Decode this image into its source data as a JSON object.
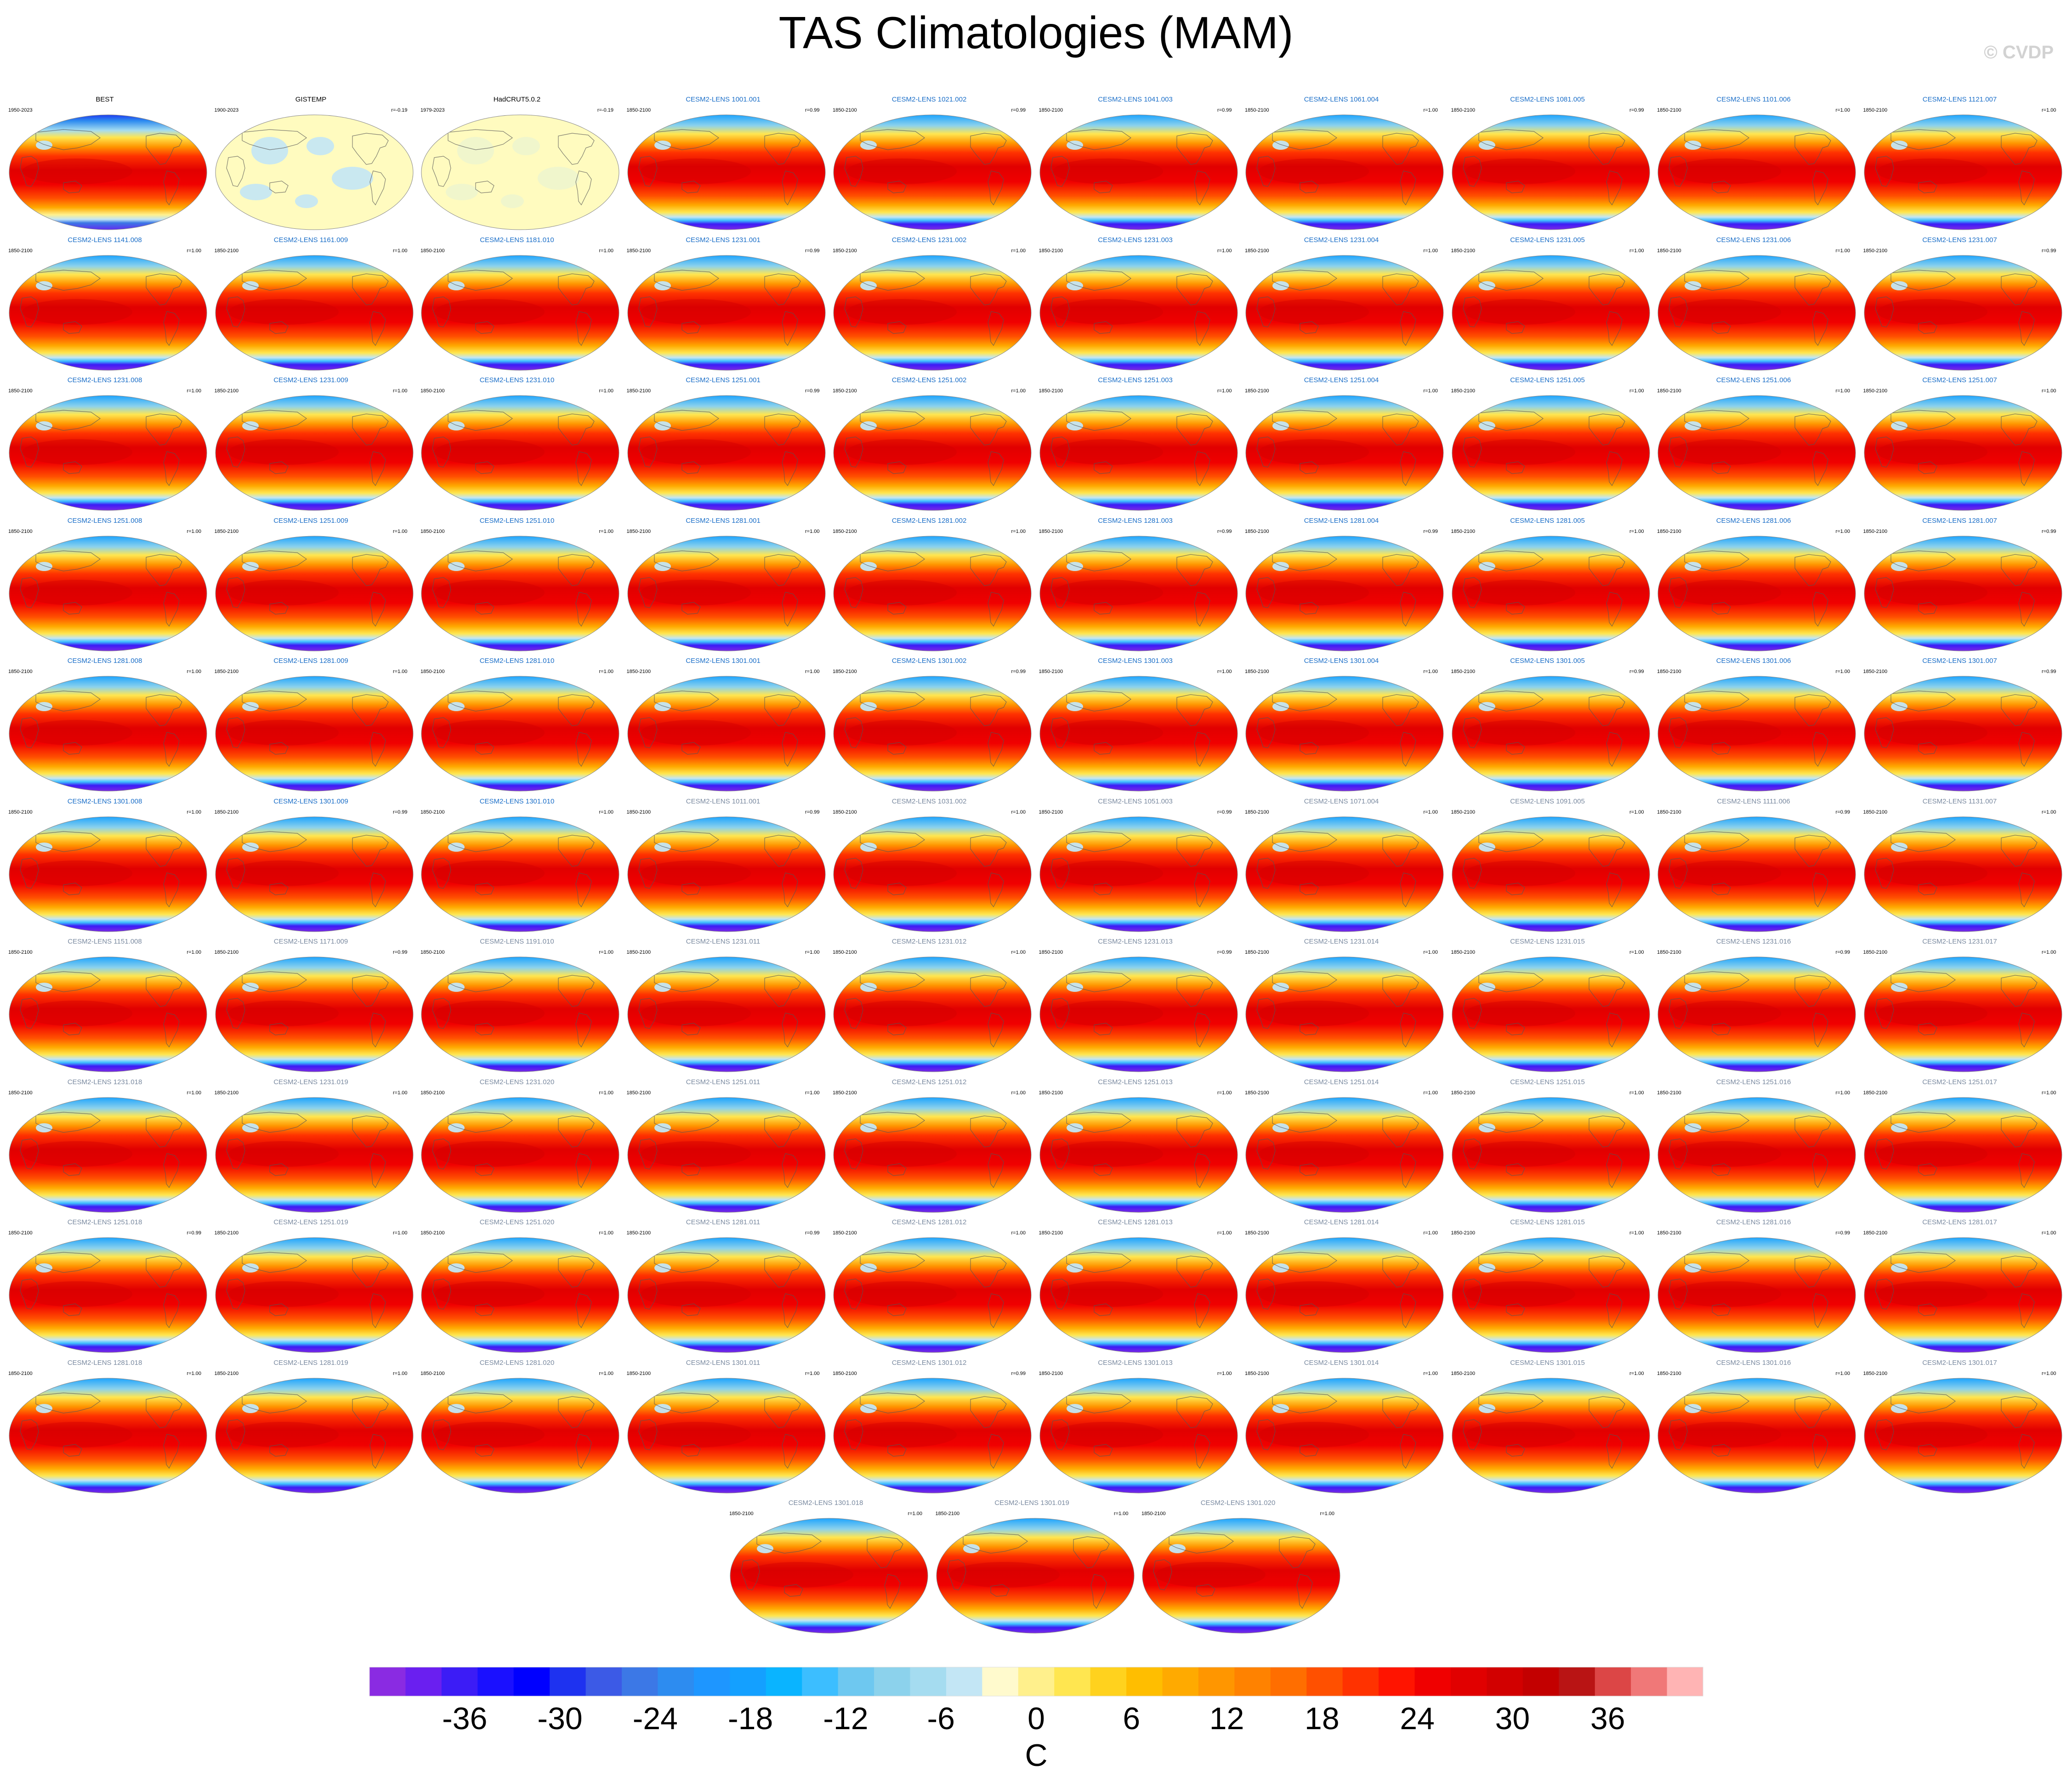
{
  "title": "TAS Climatologies (MAM)",
  "watermark": "© CVDP",
  "chart_data": {
    "type": "map_panels",
    "variable": "TAS",
    "season": "MAM",
    "colorbar": {
      "label": "C",
      "ticks": [
        -36,
        -30,
        -24,
        -18,
        -12,
        -6,
        0,
        6,
        12,
        18,
        24,
        30,
        36
      ],
      "range": [
        -42,
        42
      ],
      "step": 2,
      "colors": [
        "#8a2be2",
        "#6a1ff0",
        "#3c1cf6",
        "#1a10ff",
        "#0000ff",
        "#1e32f0",
        "#3c5ae6",
        "#3c78e6",
        "#2d8cf0",
        "#1e96ff",
        "#14a0ff",
        "#0ab4ff",
        "#3cbeff",
        "#6ec8f0",
        "#8cd2ec",
        "#a5dcf0",
        "#c3e6f5",
        "#fffacd",
        "#fff08c",
        "#ffe650",
        "#ffd21e",
        "#ffbe00",
        "#ffaa00",
        "#ff9600",
        "#ff8200",
        "#ff6e00",
        "#ff5000",
        "#ff3200",
        "#ff1400",
        "#f00000",
        "#e10000",
        "#d20000",
        "#c30000",
        "#b91414",
        "#dc4646",
        "#f07878",
        "#ffb4b4"
      ]
    },
    "panels": [
      {
        "title": "BEST",
        "period": "1950-2023",
        "r": "",
        "kind": "obs",
        "title_color": "#000000"
      },
      {
        "title": "GISTEMP",
        "period": "1900-2023",
        "r": "r=-0.19",
        "kind": "missing",
        "title_color": "#000000"
      },
      {
        "title": "HadCRUT5.0.2",
        "period": "1979-2023",
        "r": "r=-0.19",
        "kind": "missing",
        "title_color": "#000000"
      },
      {
        "title": "CESM2-LENS 1001.001",
        "period": "1850-2100",
        "r": "r=0.99",
        "kind": "model",
        "title_color": "#1a6ec8"
      },
      {
        "title": "CESM2-LENS 1021.002",
        "period": "1850-2100",
        "r": "r=0.99",
        "kind": "model",
        "title_color": "#1a6ec8"
      },
      {
        "title": "CESM2-LENS 1041.003",
        "period": "1850-2100",
        "r": "r=0.99",
        "kind": "model",
        "title_color": "#1a6ec8"
      },
      {
        "title": "CESM2-LENS 1061.004",
        "period": "1850-2100",
        "r": "r=1.00",
        "kind": "model",
        "title_color": "#1a6ec8"
      },
      {
        "title": "CESM2-LENS 1081.005",
        "period": "1850-2100",
        "r": "r=0.99",
        "kind": "model",
        "title_color": "#1a6ec8"
      },
      {
        "title": "CESM2-LENS 1101.006",
        "period": "1850-2100",
        "r": "r=1.00",
        "kind": "model",
        "title_color": "#1a6ec8"
      },
      {
        "title": "CESM2-LENS 1121.007",
        "period": "1850-2100",
        "r": "r=1.00",
        "kind": "model",
        "title_color": "#1a6ec8"
      },
      {
        "title": "CESM2-LENS 1141.008",
        "period": "1850-2100",
        "r": "r=1.00",
        "kind": "model",
        "title_color": "#1a6ec8"
      },
      {
        "title": "CESM2-LENS 1161.009",
        "period": "1850-2100",
        "r": "r=1.00",
        "kind": "model",
        "title_color": "#1a6ec8"
      },
      {
        "title": "CESM2-LENS 1181.010",
        "period": "1850-2100",
        "r": "r=1.00",
        "kind": "model",
        "title_color": "#1a6ec8"
      },
      {
        "title": "CESM2-LENS 1231.001",
        "period": "1850-2100",
        "r": "r=0.99",
        "kind": "model",
        "title_color": "#1a6ec8"
      },
      {
        "title": "CESM2-LENS 1231.002",
        "period": "1850-2100",
        "r": "r=1.00",
        "kind": "model",
        "title_color": "#1a6ec8"
      },
      {
        "title": "CESM2-LENS 1231.003",
        "period": "1850-2100",
        "r": "r=1.00",
        "kind": "model",
        "title_color": "#1a6ec8"
      },
      {
        "title": "CESM2-LENS 1231.004",
        "period": "1850-2100",
        "r": "r=1.00",
        "kind": "model",
        "title_color": "#1a6ec8"
      },
      {
        "title": "CESM2-LENS 1231.005",
        "period": "1850-2100",
        "r": "r=1.00",
        "kind": "model",
        "title_color": "#1a6ec8"
      },
      {
        "title": "CESM2-LENS 1231.006",
        "period": "1850-2100",
        "r": "r=1.00",
        "kind": "model",
        "title_color": "#1a6ec8"
      },
      {
        "title": "CESM2-LENS 1231.007",
        "period": "1850-2100",
        "r": "r=0.99",
        "kind": "model",
        "title_color": "#1a6ec8"
      },
      {
        "title": "CESM2-LENS 1231.008",
        "period": "1850-2100",
        "r": "r=1.00",
        "kind": "model",
        "title_color": "#1a6ec8"
      },
      {
        "title": "CESM2-LENS 1231.009",
        "period": "1850-2100",
        "r": "r=1.00",
        "kind": "model",
        "title_color": "#1a6ec8"
      },
      {
        "title": "CESM2-LENS 1231.010",
        "period": "1850-2100",
        "r": "r=1.00",
        "kind": "model",
        "title_color": "#1a6ec8"
      },
      {
        "title": "CESM2-LENS 1251.001",
        "period": "1850-2100",
        "r": "r=0.99",
        "kind": "model",
        "title_color": "#1a6ec8"
      },
      {
        "title": "CESM2-LENS 1251.002",
        "period": "1850-2100",
        "r": "r=1.00",
        "kind": "model",
        "title_color": "#1a6ec8"
      },
      {
        "title": "CESM2-LENS 1251.003",
        "period": "1850-2100",
        "r": "r=1.00",
        "kind": "model",
        "title_color": "#1a6ec8"
      },
      {
        "title": "CESM2-LENS 1251.004",
        "period": "1850-2100",
        "r": "r=1.00",
        "kind": "model",
        "title_color": "#1a6ec8"
      },
      {
        "title": "CESM2-LENS 1251.005",
        "period": "1850-2100",
        "r": "r=1.00",
        "kind": "model",
        "title_color": "#1a6ec8"
      },
      {
        "title": "CESM2-LENS 1251.006",
        "period": "1850-2100",
        "r": "r=1.00",
        "kind": "model",
        "title_color": "#1a6ec8"
      },
      {
        "title": "CESM2-LENS 1251.007",
        "period": "1850-2100",
        "r": "r=1.00",
        "kind": "model",
        "title_color": "#1a6ec8"
      },
      {
        "title": "CESM2-LENS 1251.008",
        "period": "1850-2100",
        "r": "r=1.00",
        "kind": "model",
        "title_color": "#1a6ec8"
      },
      {
        "title": "CESM2-LENS 1251.009",
        "period": "1850-2100",
        "r": "r=1.00",
        "kind": "model",
        "title_color": "#1a6ec8"
      },
      {
        "title": "CESM2-LENS 1251.010",
        "period": "1850-2100",
        "r": "r=1.00",
        "kind": "model",
        "title_color": "#1a6ec8"
      },
      {
        "title": "CESM2-LENS 1281.001",
        "period": "1850-2100",
        "r": "r=1.00",
        "kind": "model",
        "title_color": "#1a6ec8"
      },
      {
        "title": "CESM2-LENS 1281.002",
        "period": "1850-2100",
        "r": "r=1.00",
        "kind": "model",
        "title_color": "#1a6ec8"
      },
      {
        "title": "CESM2-LENS 1281.003",
        "period": "1850-2100",
        "r": "r=0.99",
        "kind": "model",
        "title_color": "#1a6ec8"
      },
      {
        "title": "CESM2-LENS 1281.004",
        "period": "1850-2100",
        "r": "r=0.99",
        "kind": "model",
        "title_color": "#1a6ec8"
      },
      {
        "title": "CESM2-LENS 1281.005",
        "period": "1850-2100",
        "r": "r=1.00",
        "kind": "model",
        "title_color": "#1a6ec8"
      },
      {
        "title": "CESM2-LENS 1281.006",
        "period": "1850-2100",
        "r": "r=1.00",
        "kind": "model",
        "title_color": "#1a6ec8"
      },
      {
        "title": "CESM2-LENS 1281.007",
        "period": "1850-2100",
        "r": "r=0.99",
        "kind": "model",
        "title_color": "#1a6ec8"
      },
      {
        "title": "CESM2-LENS 1281.008",
        "period": "1850-2100",
        "r": "r=1.00",
        "kind": "model",
        "title_color": "#1a6ec8"
      },
      {
        "title": "CESM2-LENS 1281.009",
        "period": "1850-2100",
        "r": "r=1.00",
        "kind": "model",
        "title_color": "#1a6ec8"
      },
      {
        "title": "CESM2-LENS 1281.010",
        "period": "1850-2100",
        "r": "r=1.00",
        "kind": "model",
        "title_color": "#1a6ec8"
      },
      {
        "title": "CESM2-LENS 1301.001",
        "period": "1850-2100",
        "r": "r=1.00",
        "kind": "model",
        "title_color": "#1a6ec8"
      },
      {
        "title": "CESM2-LENS 1301.002",
        "period": "1850-2100",
        "r": "r=0.99",
        "kind": "model",
        "title_color": "#1a6ec8"
      },
      {
        "title": "CESM2-LENS 1301.003",
        "period": "1850-2100",
        "r": "r=1.00",
        "kind": "model",
        "title_color": "#1a6ec8"
      },
      {
        "title": "CESM2-LENS 1301.004",
        "period": "1850-2100",
        "r": "r=1.00",
        "kind": "model",
        "title_color": "#1a6ec8"
      },
      {
        "title": "CESM2-LENS 1301.005",
        "period": "1850-2100",
        "r": "r=0.99",
        "kind": "model",
        "title_color": "#1a6ec8"
      },
      {
        "title": "CESM2-LENS 1301.006",
        "period": "1850-2100",
        "r": "r=1.00",
        "kind": "model",
        "title_color": "#1a6ec8"
      },
      {
        "title": "CESM2-LENS 1301.007",
        "period": "1850-2100",
        "r": "r=0.99",
        "kind": "model",
        "title_color": "#1a6ec8"
      },
      {
        "title": "CESM2-LENS 1301.008",
        "period": "1850-2100",
        "r": "r=1.00",
        "kind": "model",
        "title_color": "#1a6ec8"
      },
      {
        "title": "CESM2-LENS 1301.009",
        "period": "1850-2100",
        "r": "r=0.99",
        "kind": "model",
        "title_color": "#1a6ec8"
      },
      {
        "title": "CESM2-LENS 1301.010",
        "period": "1850-2100",
        "r": "r=1.00",
        "kind": "model",
        "title_color": "#1a6ec8"
      },
      {
        "title": "CESM2-LENS 1011.001",
        "period": "1850-2100",
        "r": "r=0.99",
        "kind": "model",
        "title_color": "#7a8aa0"
      },
      {
        "title": "CESM2-LENS 1031.002",
        "period": "1850-2100",
        "r": "r=1.00",
        "kind": "model",
        "title_color": "#7a8aa0"
      },
      {
        "title": "CESM2-LENS 1051.003",
        "period": "1850-2100",
        "r": "r=0.99",
        "kind": "model",
        "title_color": "#7a8aa0"
      },
      {
        "title": "CESM2-LENS 1071.004",
        "period": "1850-2100",
        "r": "r=1.00",
        "kind": "model",
        "title_color": "#7a8aa0"
      },
      {
        "title": "CESM2-LENS 1091.005",
        "period": "1850-2100",
        "r": "r=1.00",
        "kind": "model",
        "title_color": "#7a8aa0"
      },
      {
        "title": "CESM2-LENS 1111.006",
        "period": "1850-2100",
        "r": "r=0.99",
        "kind": "model",
        "title_color": "#7a8aa0"
      },
      {
        "title": "CESM2-LENS 1131.007",
        "period": "1850-2100",
        "r": "r=1.00",
        "kind": "model",
        "title_color": "#7a8aa0"
      },
      {
        "title": "CESM2-LENS 1151.008",
        "period": "1850-2100",
        "r": "r=1.00",
        "kind": "model",
        "title_color": "#7a8aa0"
      },
      {
        "title": "CESM2-LENS 1171.009",
        "period": "1850-2100",
        "r": "r=0.99",
        "kind": "model",
        "title_color": "#7a8aa0"
      },
      {
        "title": "CESM2-LENS 1191.010",
        "period": "1850-2100",
        "r": "r=1.00",
        "kind": "model",
        "title_color": "#7a8aa0"
      },
      {
        "title": "CESM2-LENS 1231.011",
        "period": "1850-2100",
        "r": "r=1.00",
        "kind": "model",
        "title_color": "#7a8aa0"
      },
      {
        "title": "CESM2-LENS 1231.012",
        "period": "1850-2100",
        "r": "r=1.00",
        "kind": "model",
        "title_color": "#7a8aa0"
      },
      {
        "title": "CESM2-LENS 1231.013",
        "period": "1850-2100",
        "r": "r=0.99",
        "kind": "model",
        "title_color": "#7a8aa0"
      },
      {
        "title": "CESM2-LENS 1231.014",
        "period": "1850-2100",
        "r": "r=1.00",
        "kind": "model",
        "title_color": "#7a8aa0"
      },
      {
        "title": "CESM2-LENS 1231.015",
        "period": "1850-2100",
        "r": "r=1.00",
        "kind": "model",
        "title_color": "#7a8aa0"
      },
      {
        "title": "CESM2-LENS 1231.016",
        "period": "1850-2100",
        "r": "r=0.99",
        "kind": "model",
        "title_color": "#7a8aa0"
      },
      {
        "title": "CESM2-LENS 1231.017",
        "period": "1850-2100",
        "r": "r=1.00",
        "kind": "model",
        "title_color": "#7a8aa0"
      },
      {
        "title": "CESM2-LENS 1231.018",
        "period": "1850-2100",
        "r": "r=1.00",
        "kind": "model",
        "title_color": "#7a8aa0"
      },
      {
        "title": "CESM2-LENS 1231.019",
        "period": "1850-2100",
        "r": "r=1.00",
        "kind": "model",
        "title_color": "#7a8aa0"
      },
      {
        "title": "CESM2-LENS 1231.020",
        "period": "1850-2100",
        "r": "r=1.00",
        "kind": "model",
        "title_color": "#7a8aa0"
      },
      {
        "title": "CESM2-LENS 1251.011",
        "period": "1850-2100",
        "r": "r=1.00",
        "kind": "model",
        "title_color": "#7a8aa0"
      },
      {
        "title": "CESM2-LENS 1251.012",
        "period": "1850-2100",
        "r": "r=1.00",
        "kind": "model",
        "title_color": "#7a8aa0"
      },
      {
        "title": "CESM2-LENS 1251.013",
        "period": "1850-2100",
        "r": "r=1.00",
        "kind": "model",
        "title_color": "#7a8aa0"
      },
      {
        "title": "CESM2-LENS 1251.014",
        "period": "1850-2100",
        "r": "r=1.00",
        "kind": "model",
        "title_color": "#7a8aa0"
      },
      {
        "title": "CESM2-LENS 1251.015",
        "period": "1850-2100",
        "r": "r=1.00",
        "kind": "model",
        "title_color": "#7a8aa0"
      },
      {
        "title": "CESM2-LENS 1251.016",
        "period": "1850-2100",
        "r": "r=1.00",
        "kind": "model",
        "title_color": "#7a8aa0"
      },
      {
        "title": "CESM2-LENS 1251.017",
        "period": "1850-2100",
        "r": "r=1.00",
        "kind": "model",
        "title_color": "#7a8aa0"
      },
      {
        "title": "CESM2-LENS 1251.018",
        "period": "1850-2100",
        "r": "r=0.99",
        "kind": "model",
        "title_color": "#7a8aa0"
      },
      {
        "title": "CESM2-LENS 1251.019",
        "period": "1850-2100",
        "r": "r=1.00",
        "kind": "model",
        "title_color": "#7a8aa0"
      },
      {
        "title": "CESM2-LENS 1251.020",
        "period": "1850-2100",
        "r": "r=1.00",
        "kind": "model",
        "title_color": "#7a8aa0"
      },
      {
        "title": "CESM2-LENS 1281.011",
        "period": "1850-2100",
        "r": "r=0.99",
        "kind": "model",
        "title_color": "#7a8aa0"
      },
      {
        "title": "CESM2-LENS 1281.012",
        "period": "1850-2100",
        "r": "r=1.00",
        "kind": "model",
        "title_color": "#7a8aa0"
      },
      {
        "title": "CESM2-LENS 1281.013",
        "period": "1850-2100",
        "r": "r=1.00",
        "kind": "model",
        "title_color": "#7a8aa0"
      },
      {
        "title": "CESM2-LENS 1281.014",
        "period": "1850-2100",
        "r": "r=1.00",
        "kind": "model",
        "title_color": "#7a8aa0"
      },
      {
        "title": "CESM2-LENS 1281.015",
        "period": "1850-2100",
        "r": "r=1.00",
        "kind": "model",
        "title_color": "#7a8aa0"
      },
      {
        "title": "CESM2-LENS 1281.016",
        "period": "1850-2100",
        "r": "r=0.99",
        "kind": "model",
        "title_color": "#7a8aa0"
      },
      {
        "title": "CESM2-LENS 1281.017",
        "period": "1850-2100",
        "r": "r=1.00",
        "kind": "model",
        "title_color": "#7a8aa0"
      },
      {
        "title": "CESM2-LENS 1281.018",
        "period": "1850-2100",
        "r": "r=1.00",
        "kind": "model",
        "title_color": "#7a8aa0"
      },
      {
        "title": "CESM2-LENS 1281.019",
        "period": "1850-2100",
        "r": "r=1.00",
        "kind": "model",
        "title_color": "#7a8aa0"
      },
      {
        "title": "CESM2-LENS 1281.020",
        "period": "1850-2100",
        "r": "r=1.00",
        "kind": "model",
        "title_color": "#7a8aa0"
      },
      {
        "title": "CESM2-LENS 1301.011",
        "period": "1850-2100",
        "r": "r=1.00",
        "kind": "model",
        "title_color": "#7a8aa0"
      },
      {
        "title": "CESM2-LENS 1301.012",
        "period": "1850-2100",
        "r": "r=0.99",
        "kind": "model",
        "title_color": "#7a8aa0"
      },
      {
        "title": "CESM2-LENS 1301.013",
        "period": "1850-2100",
        "r": "r=1.00",
        "kind": "model",
        "title_color": "#7a8aa0"
      },
      {
        "title": "CESM2-LENS 1301.014",
        "period": "1850-2100",
        "r": "r=1.00",
        "kind": "model",
        "title_color": "#7a8aa0"
      },
      {
        "title": "CESM2-LENS 1301.015",
        "period": "1850-2100",
        "r": "r=1.00",
        "kind": "model",
        "title_color": "#7a8aa0"
      },
      {
        "title": "CESM2-LENS 1301.016",
        "period": "1850-2100",
        "r": "r=1.00",
        "kind": "model",
        "title_color": "#7a8aa0"
      },
      {
        "title": "CESM2-LENS 1301.017",
        "period": "1850-2100",
        "r": "r=1.00",
        "kind": "model",
        "title_color": "#7a8aa0"
      },
      {
        "title": "CESM2-LENS 1301.018",
        "period": "1850-2100",
        "r": "r=1.00",
        "kind": "model",
        "title_color": "#7a8aa0"
      },
      {
        "title": "CESM2-LENS 1301.019",
        "period": "1850-2100",
        "r": "r=1.00",
        "kind": "model",
        "title_color": "#7a8aa0"
      },
      {
        "title": "CESM2-LENS 1301.020",
        "period": "1850-2100",
        "r": "r=1.00",
        "kind": "model",
        "title_color": "#7a8aa0"
      }
    ]
  }
}
